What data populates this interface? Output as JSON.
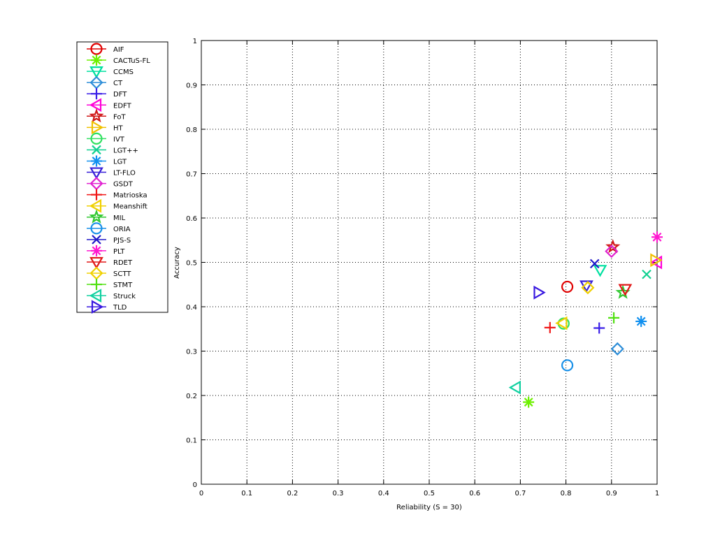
{
  "chart_data": {
    "type": "scatter",
    "title": "",
    "xlabel": "Reliability (S = 30)",
    "ylabel": "Accuracy",
    "xlim": [
      0,
      1
    ],
    "ylim": [
      0,
      1
    ],
    "xticks": [
      "0",
      "0.1",
      "0.2",
      "0.3",
      "0.4",
      "0.5",
      "0.6",
      "0.7",
      "0.8",
      "0.9",
      "1"
    ],
    "yticks": [
      "0",
      "0.1",
      "0.2",
      "0.3",
      "0.4",
      "0.5",
      "0.6",
      "0.7",
      "0.8",
      "0.9",
      "1"
    ],
    "grid": true,
    "legend_position": "outside-left",
    "series": [
      {
        "name": "AIF",
        "marker": "circle",
        "color": "#e00000",
        "points": [
          [
            0.803,
            0.445
          ]
        ]
      },
      {
        "name": "CACTuS-FL",
        "marker": "asterisk",
        "color": "#6ef000",
        "points": [
          [
            0.718,
            0.185
          ]
        ]
      },
      {
        "name": "CCMS",
        "marker": "triangle-down",
        "color": "#00e0a0",
        "points": [
          [
            0.875,
            0.483
          ]
        ]
      },
      {
        "name": "CT",
        "marker": "diamond",
        "color": "#2e8ed8",
        "points": [
          [
            0.913,
            0.305
          ]
        ]
      },
      {
        "name": "DFT",
        "marker": "plus",
        "color": "#3a1ee8",
        "points": [
          [
            0.873,
            0.352
          ]
        ]
      },
      {
        "name": "EDFT",
        "marker": "triangle-left",
        "color": "#ff00d8",
        "points": [
          [
            1.0,
            0.5
          ]
        ]
      },
      {
        "name": "FoT",
        "marker": "star",
        "color": "#d01818",
        "points": [
          [
            0.903,
            0.535
          ]
        ]
      },
      {
        "name": "HT",
        "marker": "triangle-right",
        "color": "#f0c000",
        "points": [
          [
            0.996,
            0.505
          ]
        ]
      },
      {
        "name": "IVT",
        "marker": "circle",
        "color": "#30e060",
        "points": [
          [
            0.795,
            0.362
          ]
        ]
      },
      {
        "name": "LGT++",
        "marker": "cross",
        "color": "#10d090",
        "points": [
          [
            0.977,
            0.473
          ]
        ]
      },
      {
        "name": "LGT",
        "marker": "asterisk",
        "color": "#1090f0",
        "points": [
          [
            0.965,
            0.367
          ]
        ]
      },
      {
        "name": "LT-FLO",
        "marker": "triangle-down",
        "color": "#3820d8",
        "points": [
          [
            0.845,
            0.448
          ]
        ]
      },
      {
        "name": "GSDT",
        "marker": "diamond",
        "color": "#e020d0",
        "points": [
          [
            0.9,
            0.525
          ]
        ]
      },
      {
        "name": "Matrioska",
        "marker": "plus",
        "color": "#f01818",
        "points": [
          [
            0.765,
            0.353
          ]
        ]
      },
      {
        "name": "Meanshift",
        "marker": "triangle-left",
        "color": "#f0d000",
        "points": [
          [
            0.792,
            0.363
          ]
        ]
      },
      {
        "name": "MIL",
        "marker": "star",
        "color": "#30c830",
        "points": [
          [
            0.925,
            0.432
          ]
        ]
      },
      {
        "name": "ORIA",
        "marker": "circle",
        "color": "#1890e8",
        "points": [
          [
            0.803,
            0.268
          ]
        ]
      },
      {
        "name": "PJS-S",
        "marker": "cross",
        "color": "#2018c8",
        "points": [
          [
            0.863,
            0.497
          ]
        ]
      },
      {
        "name": "PLT",
        "marker": "asterisk",
        "color": "#ff18d0",
        "points": [
          [
            1.0,
            0.557
          ]
        ]
      },
      {
        "name": "RDET",
        "marker": "triangle-down",
        "color": "#e01818",
        "points": [
          [
            0.93,
            0.44
          ]
        ]
      },
      {
        "name": "SCTT",
        "marker": "diamond",
        "color": "#f0d000",
        "points": [
          [
            0.848,
            0.443
          ]
        ]
      },
      {
        "name": "STMT",
        "marker": "plus",
        "color": "#50e010",
        "points": [
          [
            0.905,
            0.375
          ]
        ]
      },
      {
        "name": "Struck",
        "marker": "triangle-left",
        "color": "#10d0a0",
        "points": [
          [
            0.69,
            0.218
          ]
        ]
      },
      {
        "name": "TLD",
        "marker": "triangle-right",
        "color": "#3818e0",
        "points": [
          [
            0.74,
            0.432
          ]
        ]
      }
    ]
  }
}
